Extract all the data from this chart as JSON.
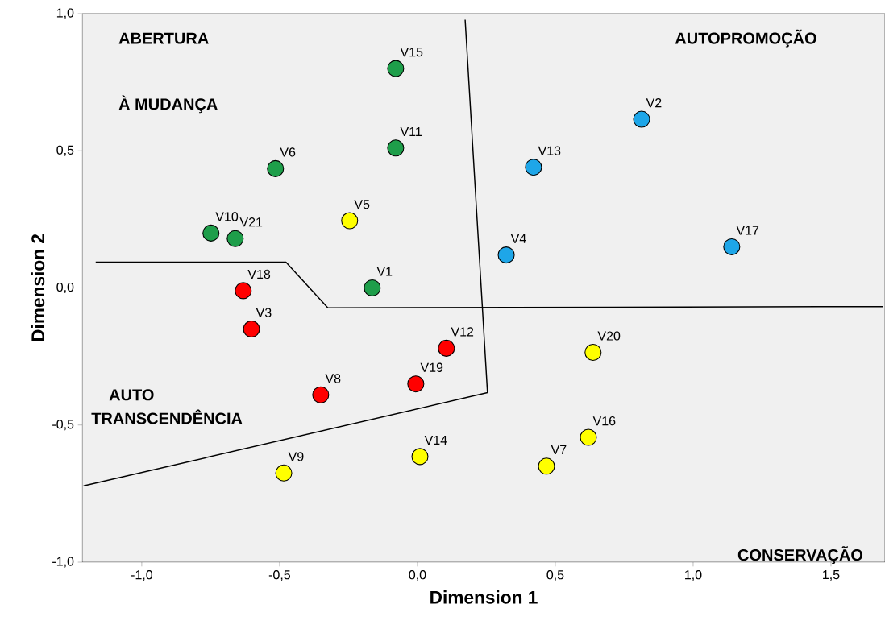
{
  "chart_data": {
    "type": "scatter",
    "xlabel": "Dimension 1",
    "ylabel": "Dimension 2",
    "xlim": [
      -1.216,
      1.696
    ],
    "ylim": [
      -1,
      1
    ],
    "xticks": [
      {
        "value": -1,
        "label": "-1,0"
      },
      {
        "value": -0.5,
        "label": "-0,5"
      },
      {
        "value": 0,
        "label": "0,0"
      },
      {
        "value": 0.5,
        "label": "0,5"
      },
      {
        "value": 1,
        "label": "1,0"
      },
      {
        "value": 1.5,
        "label": "1,5"
      }
    ],
    "yticks": [
      {
        "value": -1,
        "label": "-1,0"
      },
      {
        "value": -0.5,
        "label": "-0,5"
      },
      {
        "value": 0,
        "label": "0,0"
      },
      {
        "value": 0.5,
        "label": "0,5"
      },
      {
        "value": 1,
        "label": "1,0"
      }
    ],
    "grid": false,
    "marker": "circle",
    "series": [
      {
        "color": "#1e9e4a",
        "x": [
          -0.079,
          -0.079,
          -0.515,
          -0.749,
          -0.661,
          -0.164
        ],
        "values": [
          0.8,
          0.51,
          0.435,
          0.2,
          0.18,
          0.0
        ]
      },
      {
        "color": "#ffff00",
        "x": [
          -0.246,
          -0.485,
          0.009,
          0.468,
          0.62,
          0.637
        ],
        "values": [
          0.245,
          -0.675,
          -0.615,
          -0.65,
          -0.545,
          -0.235
        ]
      },
      {
        "color": "#ff0000",
        "x": [
          -0.632,
          -0.602,
          -0.351,
          -0.006,
          0.105
        ],
        "values": [
          -0.01,
          -0.15,
          -0.39,
          -0.35,
          -0.22
        ]
      },
      {
        "color": "#1ea6e8",
        "x": [
          0.322,
          0.421,
          0.813,
          1.14
        ],
        "values": [
          0.12,
          0.44,
          0.615,
          0.15
        ]
      },
      {
        "type": "line",
        "marker": "none",
        "color": "#000000",
        "x": [
          -1.167,
          -0.477,
          -0.325,
          1.69
        ],
        "values": [
          0.094,
          0.094,
          -0.073,
          -0.068
        ]
      },
      {
        "type": "line",
        "marker": "none",
        "color": "#000000",
        "x": [
          0.173,
          0.254,
          -1.211
        ],
        "values": [
          0.978,
          -0.382,
          -0.722
        ]
      }
    ],
    "annotations": [
      "ABERTURA",
      "À MUDANÇA",
      "AUTOPROMOÇÃO",
      "AUTO",
      "TRANSCENDÊNCIA",
      "CONSERVAÇÃO",
      {
        "text": "V15",
        "x": -0.079,
        "y": 0.8
      },
      {
        "text": "V11",
        "x": -0.079,
        "y": 0.51
      },
      {
        "text": "V6",
        "x": -0.515,
        "y": 0.435
      },
      {
        "text": "V10",
        "x": -0.749,
        "y": 0.2
      },
      {
        "text": "V21",
        "x": -0.661,
        "y": 0.18
      },
      {
        "text": "V1",
        "x": -0.164,
        "y": 0.0
      },
      {
        "text": "V5",
        "x": -0.246,
        "y": 0.245
      },
      {
        "text": "V9",
        "x": -0.485,
        "y": -0.675
      },
      {
        "text": "V14",
        "x": 0.009,
        "y": -0.615
      },
      {
        "text": "V7",
        "x": 0.468,
        "y": -0.65
      },
      {
        "text": "V16",
        "x": 0.62,
        "y": -0.545
      },
      {
        "text": "V20",
        "x": 0.637,
        "y": -0.235
      },
      {
        "text": "V18",
        "x": -0.632,
        "y": -0.01
      },
      {
        "text": "V3",
        "x": -0.602,
        "y": -0.15
      },
      {
        "text": "V8",
        "x": -0.351,
        "y": -0.39
      },
      {
        "text": "V19",
        "x": -0.006,
        "y": -0.35
      },
      {
        "text": "V12",
        "x": 0.105,
        "y": -0.22
      },
      {
        "text": "V4",
        "x": 0.322,
        "y": 0.12
      },
      {
        "text": "V13",
        "x": 0.421,
        "y": 0.44
      },
      {
        "text": "V2",
        "x": 0.813,
        "y": 0.615
      },
      {
        "text": "V17",
        "x": 1.14,
        "y": 0.15
      }
    ]
  }
}
